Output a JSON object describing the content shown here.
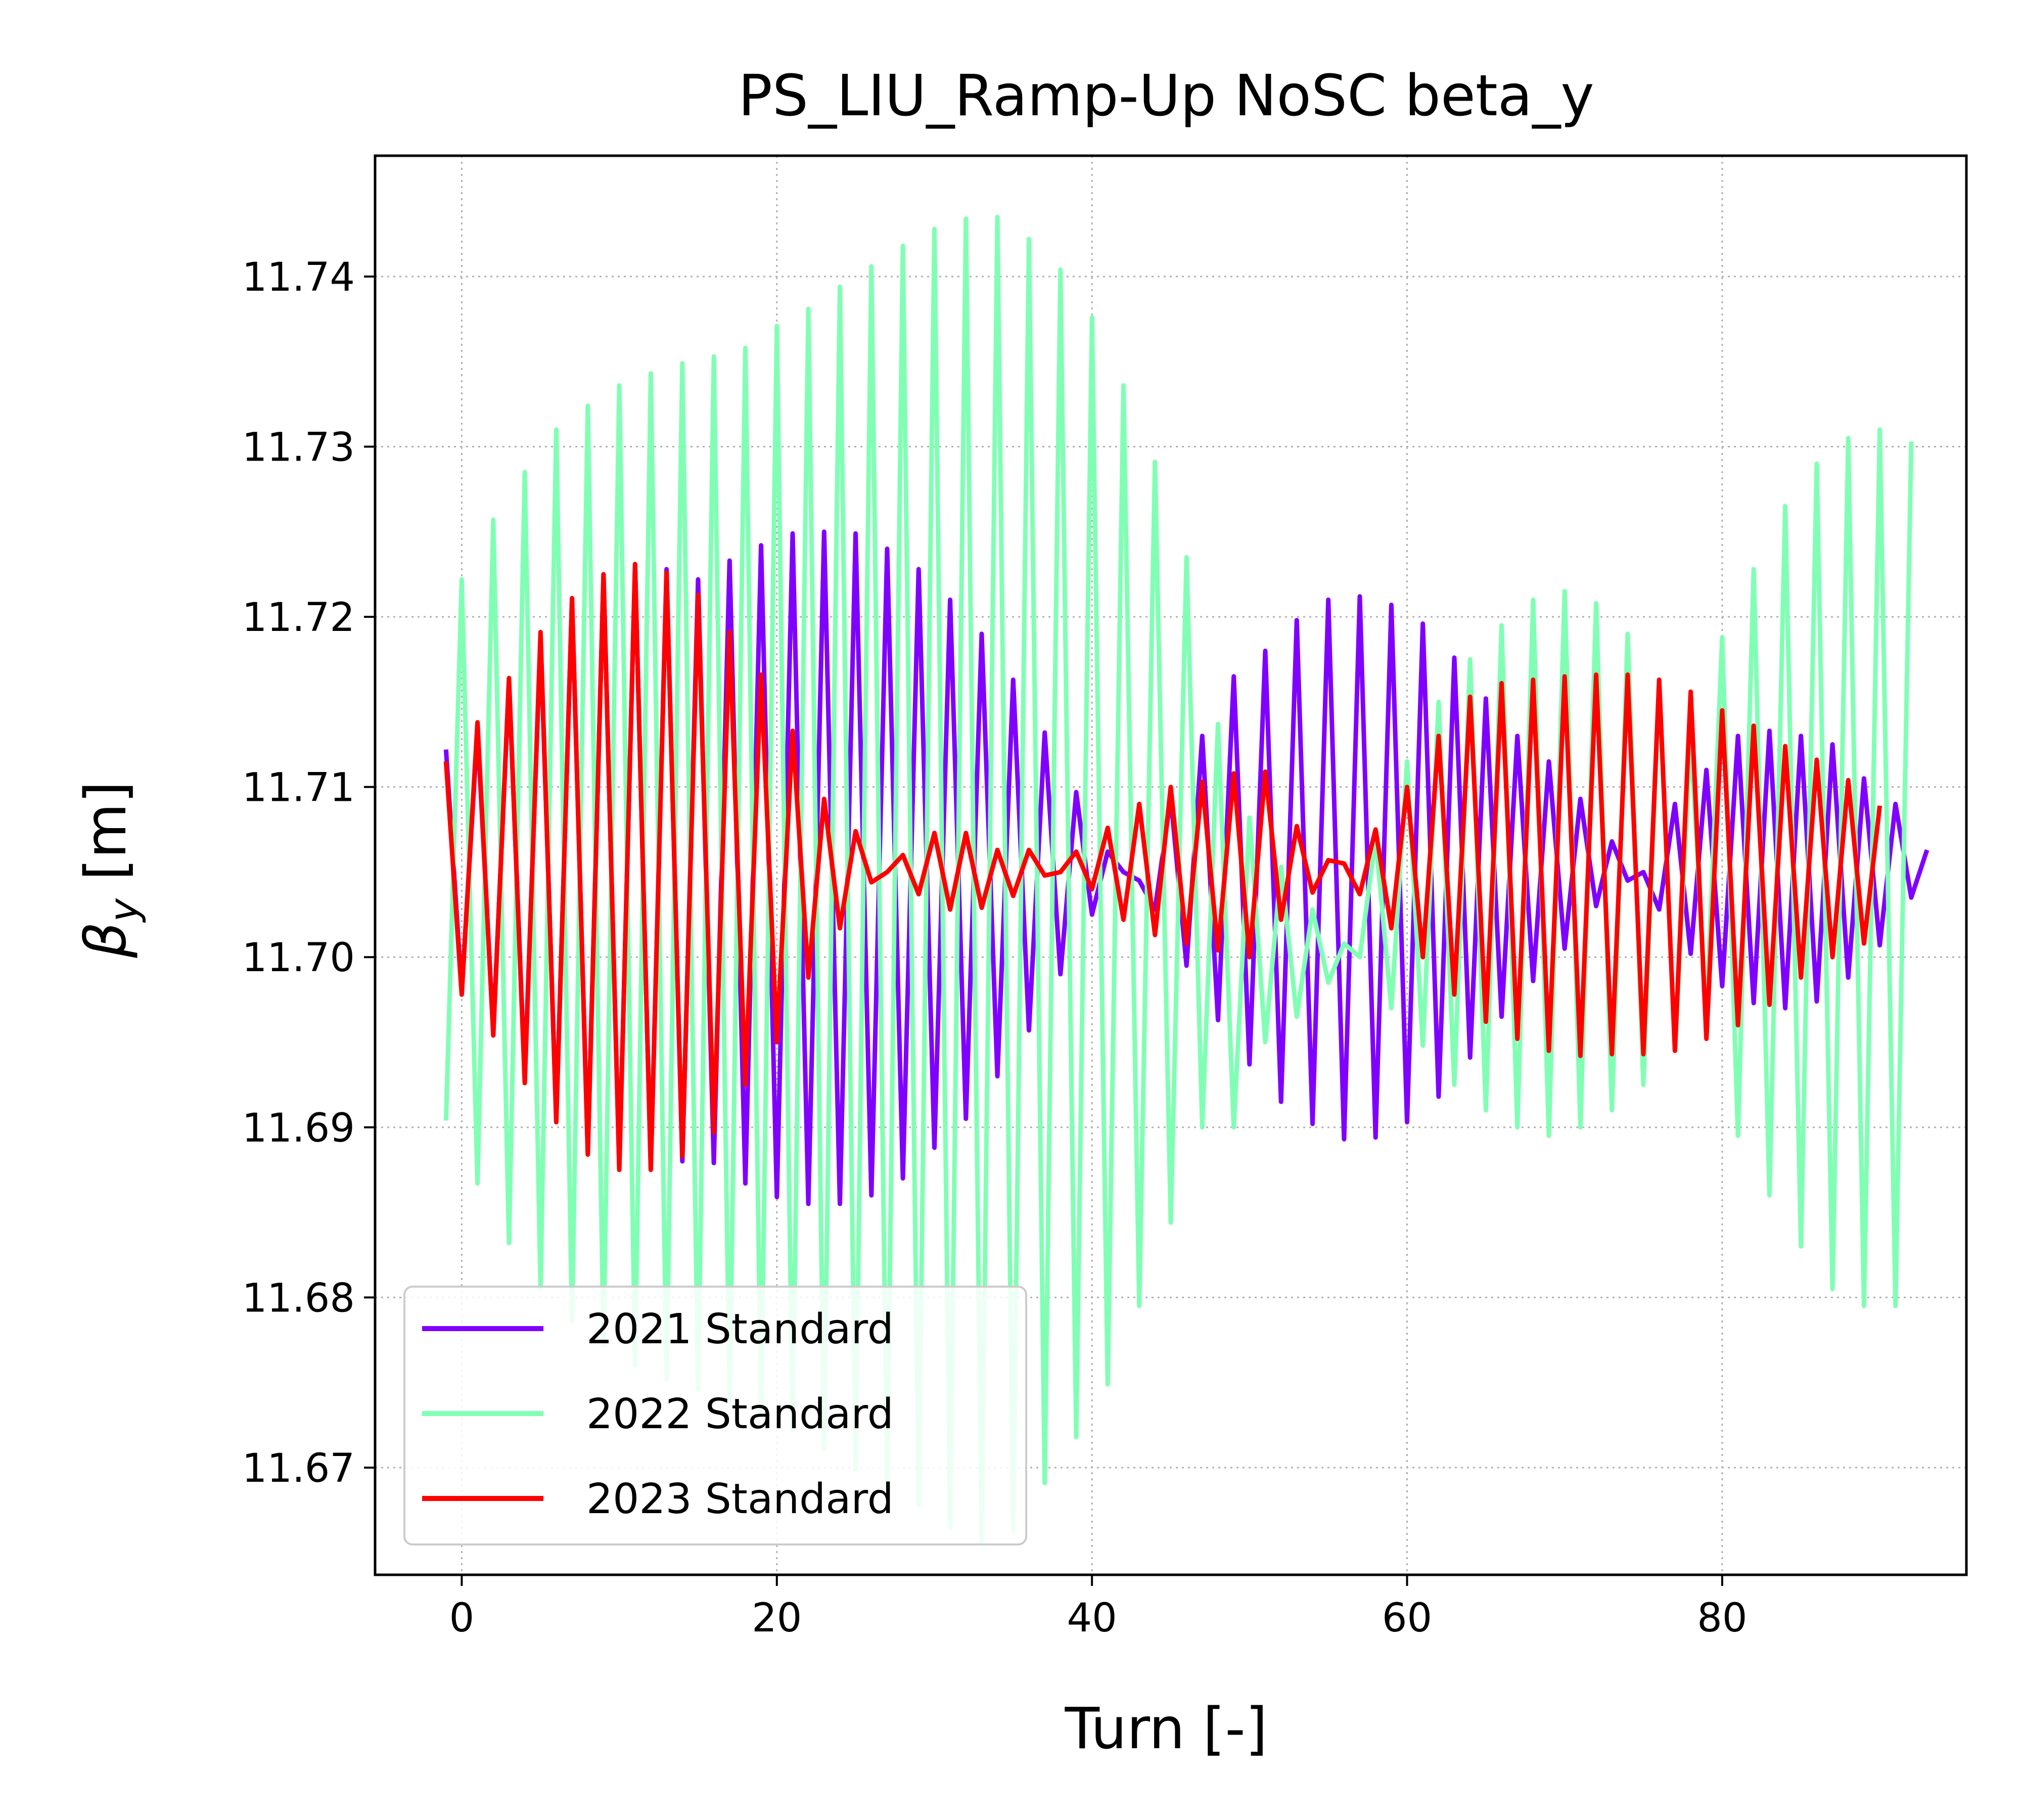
{
  "chart_data": {
    "type": "line",
    "title": "PS_LIU_Ramp-Up NoSC beta_y",
    "xlabel": "Turn [-]",
    "ylabel_symbol": "β",
    "ylabel_sub": "y",
    "ylabel_unit": " [m]",
    "xlim": [
      -5.5,
      95.5
    ],
    "ylim": [
      11.6637,
      11.7471
    ],
    "xticks": [
      0,
      20,
      40,
      60,
      80
    ],
    "yticks": [
      11.67,
      11.68,
      11.69,
      11.7,
      11.71,
      11.72,
      11.73,
      11.74
    ],
    "ytick_labels": [
      "11.67",
      "11.68",
      "11.69",
      "11.70",
      "11.71",
      "11.72",
      "11.73",
      "11.74"
    ],
    "grid": true,
    "legend_position": "lower-left",
    "x_start": -1,
    "x_step": 1,
    "series": [
      {
        "name": "2021 Standard",
        "color": "#7f00ff",
        "values": [
          11.7122,
          11.698,
          11.7134,
          11.6956,
          11.7162,
          11.6929,
          11.7188,
          11.6905,
          11.721,
          11.6886,
          11.7225,
          11.6876,
          11.723,
          11.6876,
          11.7228,
          11.688,
          11.7222,
          11.6879,
          11.7233,
          11.6867,
          11.7242,
          11.6859,
          11.7249,
          11.6855,
          11.725,
          11.6855,
          11.7249,
          11.686,
          11.724,
          11.687,
          11.7228,
          11.6888,
          11.721,
          11.6905,
          11.719,
          11.693,
          11.7163,
          11.6957,
          11.7132,
          11.699,
          11.7097,
          11.7025,
          11.7062,
          11.705,
          11.7045,
          11.7028,
          11.7094,
          11.6995,
          11.713,
          11.6963,
          11.7165,
          11.6937,
          11.718,
          11.6915,
          11.7198,
          11.6902,
          11.721,
          11.6893,
          11.7212,
          11.6894,
          11.7207,
          11.6903,
          11.7196,
          11.6918,
          11.7176,
          11.6941,
          11.7152,
          11.6965,
          11.713,
          11.6986,
          11.7115,
          11.7005,
          11.7093,
          11.703,
          11.7068,
          11.7045,
          11.705,
          11.7028,
          11.709,
          11.7002,
          11.711,
          11.6983,
          11.713,
          11.6973,
          11.7133,
          11.697,
          11.713,
          11.6974,
          11.7125,
          11.6988,
          11.7105,
          11.7007,
          11.709,
          11.7035,
          11.7063
        ]
      },
      {
        "name": "2022 Standard",
        "color": "#80ffb4",
        "values": [
          11.6904,
          11.7222,
          11.6867,
          11.7257,
          11.6832,
          11.7285,
          11.6805,
          11.731,
          11.6786,
          11.7324,
          11.6772,
          11.7336,
          11.676,
          11.7343,
          11.6752,
          11.7349,
          11.6746,
          11.7353,
          11.674,
          11.7358,
          11.6733,
          11.7371,
          11.6722,
          11.7381,
          11.6711,
          11.7394,
          11.6699,
          11.7406,
          11.6688,
          11.7418,
          11.6678,
          11.7428,
          11.6665,
          11.7434,
          11.6656,
          11.7435,
          11.6663,
          11.7422,
          11.6691,
          11.7404,
          11.6718,
          11.7376,
          11.6749,
          11.7336,
          11.6795,
          11.7291,
          11.6844,
          11.7235,
          11.69,
          11.7137,
          11.69,
          11.7082,
          11.695,
          11.7053,
          11.6965,
          11.7028,
          11.6985,
          11.7008,
          11.7,
          11.707,
          11.697,
          11.7115,
          11.6948,
          11.715,
          11.6925,
          11.7175,
          11.691,
          11.7195,
          11.69,
          11.721,
          11.6895,
          11.7215,
          11.69,
          11.7208,
          11.691,
          11.719,
          11.6925,
          11.716,
          11.6945,
          11.713,
          11.6965,
          11.7188,
          11.6895,
          11.7228,
          11.686,
          11.7265,
          11.683,
          11.729,
          11.6805,
          11.7305,
          11.6795,
          11.731,
          11.6795,
          11.7303
        ]
      },
      {
        "name": "2023 Standard",
        "color": "#ff0000",
        "values": [
          11.7115,
          11.6978,
          11.7138,
          11.6954,
          11.7164,
          11.6926,
          11.7191,
          11.6903,
          11.7211,
          11.6884,
          11.7225,
          11.6875,
          11.7231,
          11.6875,
          11.7226,
          11.6883,
          11.7213,
          11.6897,
          11.7191,
          11.6925,
          11.7166,
          11.695,
          11.7133,
          11.6988,
          11.7093,
          11.7017,
          11.7074,
          11.7044,
          11.705,
          11.706,
          11.7037,
          11.7073,
          11.7028,
          11.7073,
          11.7029,
          11.7063,
          11.7036,
          11.7063,
          11.7048,
          11.705,
          11.7062,
          11.704,
          11.7076,
          11.7022,
          11.709,
          11.7013,
          11.71,
          11.7008,
          11.7103,
          11.7004,
          11.7108,
          11.7,
          11.7109,
          11.7022,
          11.7077,
          11.7038,
          11.7057,
          11.7055,
          11.7037,
          11.7075,
          11.7017,
          11.71,
          11.7,
          11.713,
          11.6978,
          11.7153,
          11.6962,
          11.7161,
          11.6952,
          11.7163,
          11.6945,
          11.7165,
          11.6942,
          11.7166,
          11.6943,
          11.7166,
          11.6943,
          11.7163,
          11.6945,
          11.7156,
          11.6952,
          11.7145,
          11.696,
          11.7136,
          11.6972,
          11.7124,
          11.6988,
          11.7116,
          11.7,
          11.7104,
          11.7008,
          11.7089
        ]
      }
    ]
  }
}
